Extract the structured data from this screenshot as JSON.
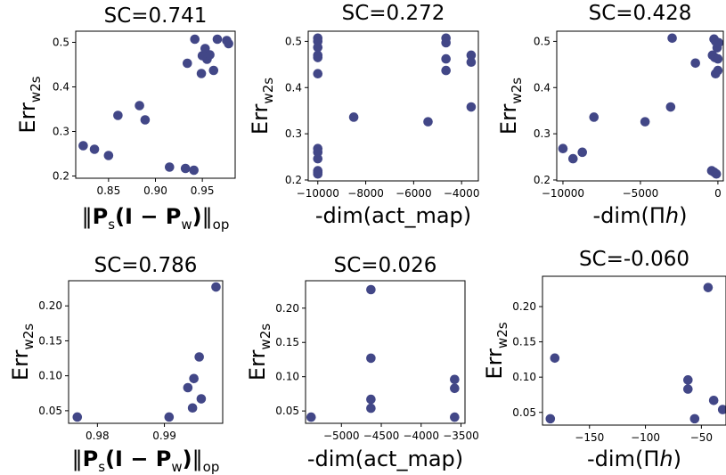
{
  "chart_data": [
    {
      "type": "scatter",
      "title": "SC=0.741",
      "xlabel": {
        "pre": "‖",
        "b1": "P",
        "s1": "s",
        "b2": "(I − P",
        "s2": "w",
        "b3": ")",
        "post": "‖",
        "sub": "op"
      },
      "ylabel": {
        "main": "Err",
        "sub": "w2s"
      },
      "xlim": [
        0.815,
        0.985
      ],
      "ylim": [
        0.195,
        0.525
      ],
      "xticks": [
        0.85,
        0.9,
        0.95
      ],
      "xtick_labels": [
        "0.85",
        "0.90",
        "0.95"
      ],
      "yticks": [
        0.2,
        0.3,
        0.4,
        0.5
      ],
      "ytick_labels": [
        "0.2",
        "0.3",
        "0.4",
        "0.5"
      ],
      "points": [
        {
          "x": 0.823,
          "y": 0.268
        },
        {
          "x": 0.835,
          "y": 0.26
        },
        {
          "x": 0.85,
          "y": 0.246
        },
        {
          "x": 0.86,
          "y": 0.336
        },
        {
          "x": 0.883,
          "y": 0.358
        },
        {
          "x": 0.889,
          "y": 0.326
        },
        {
          "x": 0.915,
          "y": 0.22
        },
        {
          "x": 0.932,
          "y": 0.217
        },
        {
          "x": 0.941,
          "y": 0.213
        },
        {
          "x": 0.934,
          "y": 0.453
        },
        {
          "x": 0.942,
          "y": 0.507
        },
        {
          "x": 0.949,
          "y": 0.43
        },
        {
          "x": 0.95,
          "y": 0.47
        },
        {
          "x": 0.953,
          "y": 0.486
        },
        {
          "x": 0.955,
          "y": 0.462
        },
        {
          "x": 0.958,
          "y": 0.472
        },
        {
          "x": 0.962,
          "y": 0.437
        },
        {
          "x": 0.966,
          "y": 0.507
        },
        {
          "x": 0.976,
          "y": 0.504
        },
        {
          "x": 0.978,
          "y": 0.497
        }
      ]
    },
    {
      "type": "scatter",
      "title": "SC=0.272",
      "xlabel": {
        "text": "-dim(act_map)"
      },
      "ylabel": {
        "main": "Err",
        "sub": "w2s"
      },
      "xlim": [
        -10400,
        -3300
      ],
      "ylim": [
        0.198,
        0.522
      ],
      "xticks": [
        -10000,
        -8000,
        -6000,
        -4000
      ],
      "xtick_labels": [
        "−10000",
        "−8000",
        "−6000",
        "−4000"
      ],
      "yticks": [
        0.2,
        0.3,
        0.4,
        0.5
      ],
      "ytick_labels": [
        "0.2",
        "0.3",
        "0.4",
        "0.5"
      ],
      "points": [
        {
          "x": -10000,
          "y": 0.507
        },
        {
          "x": -10000,
          "y": 0.5
        },
        {
          "x": -10000,
          "y": 0.487
        },
        {
          "x": -10000,
          "y": 0.47
        },
        {
          "x": -10000,
          "y": 0.465
        },
        {
          "x": -10000,
          "y": 0.43
        },
        {
          "x": -10000,
          "y": 0.268
        },
        {
          "x": -10000,
          "y": 0.26
        },
        {
          "x": -10000,
          "y": 0.246
        },
        {
          "x": -10000,
          "y": 0.22
        },
        {
          "x": -10000,
          "y": 0.217
        },
        {
          "x": -10000,
          "y": 0.213
        },
        {
          "x": -8500,
          "y": 0.336
        },
        {
          "x": -5400,
          "y": 0.326
        },
        {
          "x": -4650,
          "y": 0.507
        },
        {
          "x": -4650,
          "y": 0.497
        },
        {
          "x": -4650,
          "y": 0.462
        },
        {
          "x": -4650,
          "y": 0.437
        },
        {
          "x": -3600,
          "y": 0.47
        },
        {
          "x": -3600,
          "y": 0.455
        },
        {
          "x": -3600,
          "y": 0.358
        }
      ]
    },
    {
      "type": "scatter",
      "title": "SC=0.428",
      "xlabel": {
        "pre": "-dim(Π",
        "ital": "h",
        "post": ")"
      },
      "ylabel": {
        "main": "Err",
        "sub": "w2s"
      },
      "xlim": [
        -10400,
        350
      ],
      "ylim": [
        0.198,
        0.522
      ],
      "xticks": [
        -10000,
        -5000,
        0
      ],
      "xtick_labels": [
        "−10000",
        "−5000",
        "0"
      ],
      "yticks": [
        0.2,
        0.3,
        0.4,
        0.5
      ],
      "ytick_labels": [
        "0.2",
        "0.3",
        "0.4",
        "0.5"
      ],
      "points": [
        {
          "x": -10000,
          "y": 0.268
        },
        {
          "x": -9350,
          "y": 0.246
        },
        {
          "x": -8750,
          "y": 0.26
        },
        {
          "x": -8000,
          "y": 0.336
        },
        {
          "x": -4700,
          "y": 0.326
        },
        {
          "x": -3050,
          "y": 0.358
        },
        {
          "x": -2950,
          "y": 0.507
        },
        {
          "x": -1450,
          "y": 0.453
        },
        {
          "x": -400,
          "y": 0.22
        },
        {
          "x": -250,
          "y": 0.217
        },
        {
          "x": -100,
          "y": 0.213
        },
        {
          "x": -350,
          "y": 0.47
        },
        {
          "x": -250,
          "y": 0.505
        },
        {
          "x": -150,
          "y": 0.5
        },
        {
          "x": -50,
          "y": 0.486
        },
        {
          "x": -200,
          "y": 0.465
        },
        {
          "x": 0,
          "y": 0.462
        },
        {
          "x": -150,
          "y": 0.43
        },
        {
          "x": 0,
          "y": 0.437
        },
        {
          "x": 50,
          "y": 0.497
        }
      ]
    },
    {
      "type": "scatter",
      "title": "SC=0.786",
      "xlabel": {
        "pre": "‖",
        "b1": "P",
        "s1": "s",
        "b2": "(I − P",
        "s2": "w",
        "b3": ")",
        "post": "‖",
        "sub": "op"
      },
      "ylabel": {
        "main": "Err",
        "sub": "w2s"
      },
      "xlim": [
        0.9757,
        0.9987
      ],
      "ylim": [
        0.032,
        0.236
      ],
      "xticks": [
        0.98,
        0.99
      ],
      "xtick_labels": [
        "0.98",
        "0.99"
      ],
      "yticks": [
        0.05,
        0.1,
        0.15,
        0.2
      ],
      "ytick_labels": [
        "0.05",
        "0.10",
        "0.15",
        "0.20"
      ],
      "points": [
        {
          "x": 0.977,
          "y": 0.041
        },
        {
          "x": 0.9907,
          "y": 0.041
        },
        {
          "x": 0.9935,
          "y": 0.083
        },
        {
          "x": 0.9942,
          "y": 0.054
        },
        {
          "x": 0.9944,
          "y": 0.096
        },
        {
          "x": 0.9952,
          "y": 0.127
        },
        {
          "x": 0.9955,
          "y": 0.067
        },
        {
          "x": 0.9977,
          "y": 0.227
        }
      ]
    },
    {
      "type": "scatter",
      "title": "SC=0.026",
      "xlabel": {
        "text": "-dim(act_map)"
      },
      "ylabel": {
        "main": "Err",
        "sub": "w2s"
      },
      "xlim": [
        -5450,
        -3450
      ],
      "ylim": [
        0.032,
        0.24
      ],
      "xticks": [
        -5000,
        -4500,
        -4000,
        -3500
      ],
      "xtick_labels": [
        "−5000",
        "−4500",
        "−4000",
        "−3500"
      ],
      "yticks": [
        0.05,
        0.1,
        0.15,
        0.2
      ],
      "ytick_labels": [
        "0.05",
        "0.10",
        "0.15",
        "0.20"
      ],
      "points": [
        {
          "x": -5380,
          "y": 0.041
        },
        {
          "x": -4630,
          "y": 0.227
        },
        {
          "x": -4630,
          "y": 0.127
        },
        {
          "x": -4630,
          "y": 0.067
        },
        {
          "x": -4630,
          "y": 0.054
        },
        {
          "x": -3580,
          "y": 0.096
        },
        {
          "x": -3580,
          "y": 0.083
        },
        {
          "x": -3580,
          "y": 0.041
        }
      ]
    },
    {
      "type": "scatter",
      "title": "SC=-0.060",
      "xlabel": {
        "pre": "-dim(Π",
        "ital": "h",
        "post": ")"
      },
      "ylabel": {
        "main": "Err",
        "sub": "w2s"
      },
      "xlim": [
        -192,
        -28
      ],
      "ylim": [
        0.032,
        0.243
      ],
      "xticks": [
        -150,
        -100,
        -50
      ],
      "xtick_labels": [
        "−150",
        "−100",
        "−50"
      ],
      "yticks": [
        0.05,
        0.1,
        0.15,
        0.2
      ],
      "ytick_labels": [
        "0.05",
        "0.10",
        "0.15",
        "0.20"
      ],
      "points": [
        {
          "x": -185,
          "y": 0.041
        },
        {
          "x": -181,
          "y": 0.127
        },
        {
          "x": -62,
          "y": 0.096
        },
        {
          "x": -62,
          "y": 0.083
        },
        {
          "x": -56,
          "y": 0.041
        },
        {
          "x": -44,
          "y": 0.227
        },
        {
          "x": -39,
          "y": 0.067
        },
        {
          "x": -31,
          "y": 0.054
        }
      ]
    }
  ],
  "style": {
    "marker_color": "#424787"
  }
}
